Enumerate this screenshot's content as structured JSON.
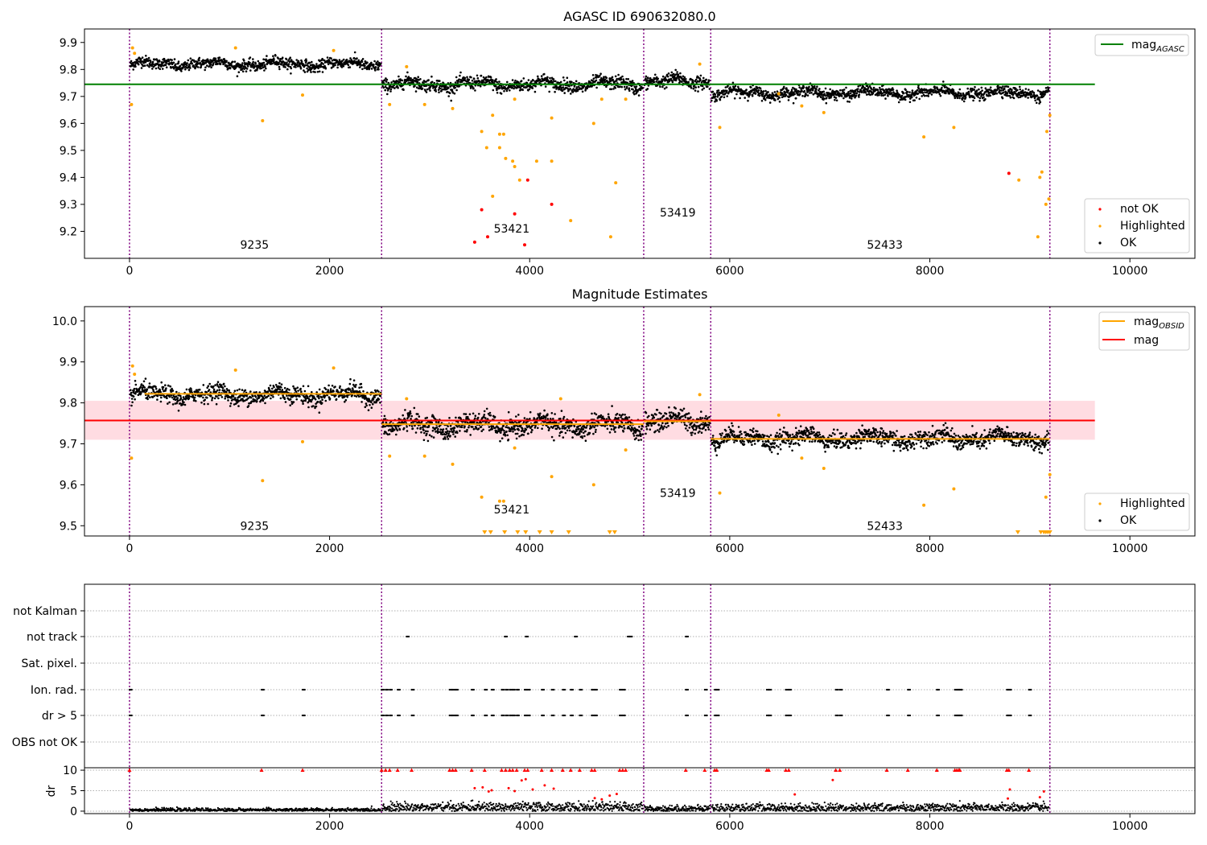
{
  "chart_data": [
    {
      "type": "scatter",
      "title": "AGASC ID 690632080.0",
      "xlim": [
        -450,
        10650
      ],
      "ylim": [
        9.1,
        9.95
      ],
      "x_ticks": [
        0,
        2000,
        4000,
        6000,
        8000,
        10000
      ],
      "x_tick_labels": [
        "0",
        "2000",
        "4000",
        "6000",
        "8000",
        "10000"
      ],
      "y_ticks": [
        9.2,
        9.3,
        9.4,
        9.5,
        9.6,
        9.7,
        9.8,
        9.9
      ],
      "y_tick_labels": [
        "9.2",
        "9.3",
        "9.4",
        "9.5",
        "9.6",
        "9.7",
        "9.8",
        "9.9"
      ],
      "obs_boundaries": [
        0,
        2520,
        5140,
        5810,
        9200
      ],
      "obs_labels": [
        {
          "text": "9235",
          "x": 1250,
          "y": 9.15
        },
        {
          "text": "53421",
          "x": 3820,
          "y": 9.21
        },
        {
          "text": "53419",
          "x": 5480,
          "y": 9.27
        },
        {
          "text": "52433",
          "x": 7550,
          "y": 9.15
        }
      ],
      "lines": [
        {
          "name": "mag_AGASC",
          "x": [
            -450,
            9650
          ],
          "y": [
            9.745,
            9.745
          ],
          "color": "#008000"
        }
      ],
      "segments": [
        {
          "x": [
            0,
            2520
          ],
          "mean": 9.82,
          "spread": 0.017
        },
        {
          "x": [
            2520,
            5140
          ],
          "mean": 9.745,
          "spread": 0.02
        },
        {
          "x": [
            5140,
            5810
          ],
          "mean": 9.755,
          "spread": 0.02
        },
        {
          "x": [
            5810,
            9200
          ],
          "mean": 9.713,
          "spread": 0.017
        }
      ],
      "series": [
        {
          "name": "not OK",
          "color": "#ff0000",
          "points": [
            [
              3450,
              9.16
            ],
            [
              3520,
              9.28
            ],
            [
              3580,
              9.18
            ],
            [
              3850,
              9.265
            ],
            [
              3950,
              9.15
            ],
            [
              3980,
              9.39
            ],
            [
              4220,
              9.3
            ],
            [
              8790,
              9.415
            ]
          ]
        },
        {
          "name": "Highlighted",
          "color": "#ffa500",
          "points": [
            [
              20,
              9.67
            ],
            [
              30,
              9.88
            ],
            [
              50,
              9.86
            ],
            [
              1060,
              9.88
            ],
            [
              1330,
              9.61
            ],
            [
              1730,
              9.705
            ],
            [
              2040,
              9.87
            ],
            [
              2600,
              9.67
            ],
            [
              2770,
              9.81
            ],
            [
              2950,
              9.67
            ],
            [
              3230,
              9.655
            ],
            [
              3520,
              9.57
            ],
            [
              3570,
              9.51
            ],
            [
              3630,
              9.63
            ],
            [
              3700,
              9.56
            ],
            [
              3740,
              9.56
            ],
            [
              3700,
              9.51
            ],
            [
              3760,
              9.47
            ],
            [
              3850,
              9.69
            ],
            [
              3850,
              9.44
            ],
            [
              3900,
              9.39
            ],
            [
              4070,
              9.46
            ],
            [
              4220,
              9.62
            ],
            [
              4220,
              9.46
            ],
            [
              4410,
              9.24
            ],
            [
              4640,
              9.6
            ],
            [
              4720,
              9.69
            ],
            [
              4810,
              9.18
            ],
            [
              4860,
              9.38
            ],
            [
              4960,
              9.69
            ],
            [
              5700,
              9.82
            ],
            [
              5900,
              9.585
            ],
            [
              6490,
              9.71
            ],
            [
              6720,
              9.665
            ],
            [
              6940,
              9.64
            ],
            [
              7940,
              9.55
            ],
            [
              8240,
              9.585
            ],
            [
              8890,
              9.39
            ],
            [
              9080,
              9.18
            ],
            [
              9100,
              9.4
            ],
            [
              9120,
              9.42
            ],
            [
              9160,
              9.3
            ],
            [
              9170,
              9.57
            ],
            [
              9190,
              9.32
            ],
            [
              9200,
              9.63
            ],
            [
              3630,
              9.33
            ],
            [
              3830,
              9.46
            ]
          ]
        },
        {
          "name": "OK",
          "color": "#000000",
          "points": []
        }
      ],
      "legend": [
        {
          "label": "mag",
          "subscript": "AGASC",
          "kind": "line",
          "color": "#008000",
          "placement": "top-right"
        },
        {
          "label": "not OK",
          "kind": "dot",
          "color": "#ff0000",
          "placement": "bottom-right"
        },
        {
          "label": "Highlighted",
          "kind": "dot",
          "color": "#ffa500",
          "placement": "bottom-right"
        },
        {
          "label": "OK",
          "kind": "dot",
          "color": "#000000",
          "placement": "bottom-right"
        }
      ]
    },
    {
      "type": "scatter",
      "title": "Magnitude Estimates",
      "xlim": [
        -450,
        10650
      ],
      "ylim": [
        9.475,
        10.035
      ],
      "x_ticks": [
        0,
        2000,
        4000,
        6000,
        8000,
        10000
      ],
      "x_tick_labels": [
        "0",
        "2000",
        "4000",
        "6000",
        "8000",
        "10000"
      ],
      "y_ticks": [
        9.5,
        9.6,
        9.7,
        9.8,
        9.9,
        10.0
      ],
      "y_tick_labels": [
        "9.5",
        "9.6",
        "9.7",
        "9.8",
        "9.9",
        "10.0"
      ],
      "obs_boundaries": [
        0,
        2520,
        5140,
        5810,
        9200
      ],
      "obs_labels": [
        {
          "text": "9235",
          "x": 1250,
          "y": 9.5
        },
        {
          "text": "53421",
          "x": 3820,
          "y": 9.54
        },
        {
          "text": "53419",
          "x": 5480,
          "y": 9.58
        },
        {
          "text": "52433",
          "x": 7550,
          "y": 9.5
        }
      ],
      "band": {
        "x": [
          -450,
          9650
        ],
        "y": [
          9.71,
          9.805
        ],
        "color": "#ffc0cb"
      },
      "lines": [
        {
          "name": "mag",
          "x": [
            -450,
            9650
          ],
          "y": [
            9.757,
            9.757
          ],
          "color": "#ff0000"
        },
        {
          "name": "mag_OBSID",
          "x": [
            150,
            2520
          ],
          "y": [
            9.822,
            9.822
          ],
          "color": "#ffa500"
        },
        {
          "name": "mag_OBSID",
          "x": [
            2520,
            5140
          ],
          "y": [
            9.748,
            9.748
          ],
          "color": "#ffa500"
        },
        {
          "name": "mag_OBSID",
          "x": [
            5140,
            5810
          ],
          "y": [
            9.755,
            9.755
          ],
          "color": "#ffa500"
        },
        {
          "name": "mag_OBSID",
          "x": [
            5810,
            9200
          ],
          "y": [
            9.712,
            9.712
          ],
          "color": "#ffa500"
        }
      ],
      "offscale_x": [
        3550,
        3610,
        3750,
        3880,
        3960,
        4100,
        4220,
        4390,
        4800,
        4850,
        8880,
        9110,
        9140,
        9160,
        9180,
        9200
      ],
      "series": [
        {
          "name": "Highlighted",
          "color": "#ffa500",
          "points": [
            [
              20,
              9.665
            ],
            [
              30,
              9.89
            ],
            [
              50,
              9.87
            ],
            [
              1060,
              9.88
            ],
            [
              1330,
              9.61
            ],
            [
              1730,
              9.705
            ],
            [
              2040,
              9.885
            ],
            [
              2600,
              9.67
            ],
            [
              2770,
              9.81
            ],
            [
              2950,
              9.67
            ],
            [
              3230,
              9.65
            ],
            [
              3520,
              9.57
            ],
            [
              3700,
              9.56
            ],
            [
              3740,
              9.56
            ],
            [
              3850,
              9.69
            ],
            [
              4220,
              9.62
            ],
            [
              4310,
              9.81
            ],
            [
              4640,
              9.6
            ],
            [
              4960,
              9.685
            ],
            [
              5700,
              9.82
            ],
            [
              5900,
              9.58
            ],
            [
              6490,
              9.77
            ],
            [
              6720,
              9.665
            ],
            [
              6940,
              9.64
            ],
            [
              7940,
              9.55
            ],
            [
              8240,
              9.59
            ],
            [
              9160,
              9.57
            ],
            [
              9200,
              9.625
            ]
          ]
        },
        {
          "name": "OK",
          "color": "#000000",
          "points": []
        }
      ],
      "legend": [
        {
          "label": "mag",
          "subscript": "OBSID",
          "kind": "line",
          "color": "#ffa500",
          "placement": "top-right"
        },
        {
          "label": "mag",
          "kind": "line",
          "color": "#ff0000",
          "placement": "top-right"
        },
        {
          "label": "Highlighted",
          "kind": "dot",
          "color": "#ffa500",
          "placement": "bottom-right"
        },
        {
          "label": "OK",
          "kind": "dot",
          "color": "#000000",
          "placement": "bottom-right"
        }
      ]
    },
    {
      "type": "scatter",
      "title": "",
      "xlim": [
        -450,
        10650
      ],
      "categories": [
        "not Kalman",
        "not track",
        "Sat. pixel.",
        "Ion. rad.",
        "dr > 5",
        "OBS not OK"
      ],
      "obs_boundaries": [
        0,
        2520,
        5140,
        5810,
        9200
      ],
      "flags": [
        {
          "category": "not track",
          "x": [
            2770,
            3750,
            3960,
            4450,
            4980,
            5000,
            5560
          ]
        },
        {
          "category": "Ion. rad.",
          "x": [
            0,
            1320,
            1730,
            2520,
            2560,
            2600,
            2680,
            2820,
            3200,
            3230,
            3260,
            3420,
            3550,
            3620,
            3720,
            3760,
            3800,
            3830,
            3870,
            3950,
            3980,
            4120,
            4220,
            4330,
            4410,
            4500,
            4620,
            4650,
            4900,
            4930,
            5560,
            5750,
            5850,
            5870,
            6370,
            6390,
            6560,
            6590,
            7060,
            7100,
            7570,
            7780,
            8070,
            8250,
            8270,
            8290,
            8300,
            8770,
            8790,
            8990
          ]
        },
        {
          "category": "dr > 5",
          "x": [
            0,
            1320,
            1730,
            2520,
            2560,
            2600,
            2680,
            2820,
            3200,
            3230,
            3260,
            3420,
            3550,
            3620,
            3720,
            3760,
            3800,
            3830,
            3870,
            3950,
            3980,
            4120,
            4220,
            4330,
            4410,
            4500,
            4620,
            4650,
            4900,
            4930,
            5560,
            5750,
            5850,
            5870,
            6370,
            6390,
            6560,
            6590,
            7060,
            7100,
            7570,
            7780,
            8070,
            8250,
            8270,
            8290,
            8300,
            8770,
            8790,
            8990
          ]
        }
      ]
    },
    {
      "type": "scatter",
      "title": "",
      "ylabel": "dr",
      "xlim": [
        -450,
        10650
      ],
      "ylim": [
        -0.6,
        10.6
      ],
      "x_ticks": [
        0,
        2000,
        4000,
        6000,
        8000,
        10000
      ],
      "x_tick_labels": [
        "0",
        "2000",
        "4000",
        "6000",
        "8000",
        "10000"
      ],
      "y_ticks": [
        0,
        5,
        10
      ],
      "y_tick_labels": [
        "0",
        "5",
        "10"
      ],
      "obs_boundaries": [
        0,
        2520,
        5140,
        5810,
        9200
      ],
      "capped_x": [
        0,
        1320,
        1730,
        2520,
        2560,
        2600,
        2680,
        2820,
        3200,
        3230,
        3260,
        3420,
        3550,
        3720,
        3760,
        3800,
        3830,
        3870,
        3950,
        3980,
        4120,
        4220,
        4330,
        4410,
        4500,
        4620,
        4650,
        4900,
        4930,
        4960,
        5560,
        5750,
        5850,
        5870,
        6370,
        6390,
        6560,
        6590,
        7060,
        7100,
        7570,
        7780,
        8070,
        8250,
        8270,
        8290,
        8300,
        8770,
        8790,
        8990
      ],
      "series": [
        {
          "name": "dr > 5",
          "color": "#ff0000",
          "points": [
            [
              3450,
              5.6
            ],
            [
              3530,
              5.8
            ],
            [
              3590,
              4.8
            ],
            [
              3620,
              5.1
            ],
            [
              3790,
              5.6
            ],
            [
              3850,
              4.9
            ],
            [
              3920,
              7.5
            ],
            [
              3960,
              7.8
            ],
            [
              4030,
              5.3
            ],
            [
              4150,
              6.3
            ],
            [
              4240,
              5.5
            ],
            [
              4650,
              3.2
            ],
            [
              4720,
              2.9
            ],
            [
              4800,
              3.8
            ],
            [
              4870,
              4.2
            ],
            [
              6650,
              4.1
            ],
            [
              7030,
              7.6
            ],
            [
              8800,
              5.3
            ],
            [
              8780,
              3.1
            ],
            [
              9100,
              3.4
            ],
            [
              9140,
              4.8
            ]
          ]
        },
        {
          "name": "dr",
          "color": "#000000",
          "points": []
        }
      ]
    }
  ]
}
